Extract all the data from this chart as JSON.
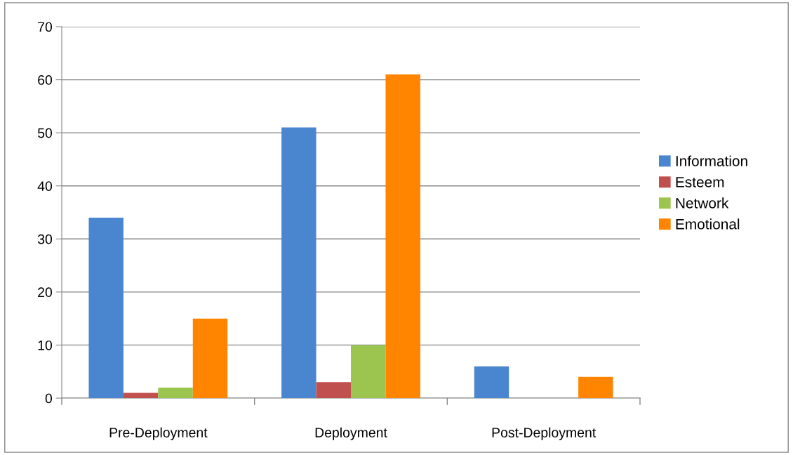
{
  "chart_data": {
    "type": "bar",
    "categories": [
      "Pre-Deployment",
      "Deployment",
      "Post-Deployment"
    ],
    "series": [
      {
        "name": "Information",
        "color": "#4a86cf",
        "values": [
          34,
          51,
          6
        ]
      },
      {
        "name": "Esteem",
        "color": "#c0504d",
        "values": [
          1,
          3,
          0
        ]
      },
      {
        "name": "Network",
        "color": "#9bc54f",
        "values": [
          2,
          10,
          0
        ]
      },
      {
        "name": "Emotional",
        "color": "#ff8400",
        "values": [
          15,
          61,
          4
        ]
      }
    ],
    "ylim": [
      0,
      70
    ],
    "yticks": [
      0,
      10,
      20,
      30,
      40,
      50,
      60,
      70
    ],
    "grid": "y",
    "legend": "right"
  }
}
